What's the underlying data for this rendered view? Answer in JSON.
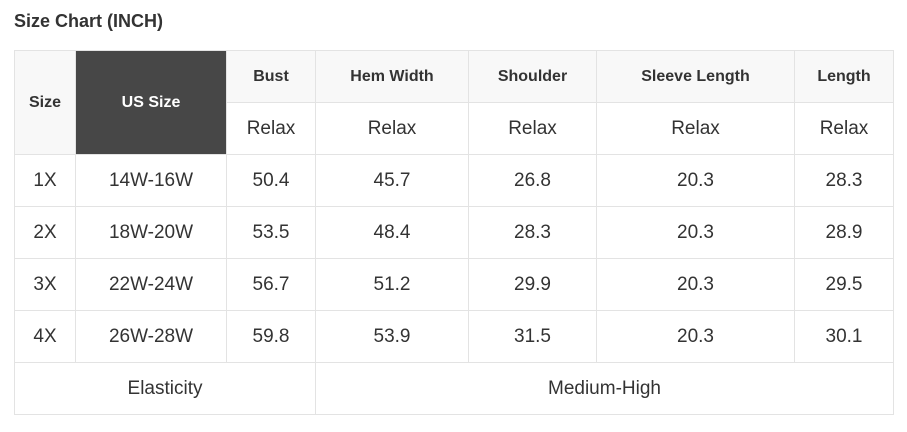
{
  "title": "Size Chart (INCH)",
  "headers": {
    "size": "Size",
    "us_size": "US Size",
    "cols": [
      "Bust",
      "Hem Width",
      "Shoulder",
      "Sleeve Length",
      "Length"
    ]
  },
  "fit": [
    "Relax",
    "Relax",
    "Relax",
    "Relax",
    "Relax"
  ],
  "rows": [
    [
      "1X",
      "14W-16W",
      "50.4",
      "45.7",
      "26.8",
      "20.3",
      "28.3"
    ],
    [
      "2X",
      "18W-20W",
      "53.5",
      "48.4",
      "28.3",
      "20.3",
      "28.9"
    ],
    [
      "3X",
      "22W-24W",
      "56.7",
      "51.2",
      "29.9",
      "20.3",
      "29.5"
    ],
    [
      "4X",
      "26W-28W",
      "59.8",
      "53.9",
      "31.5",
      "20.3",
      "30.1"
    ]
  ],
  "footer": {
    "label": "Elasticity",
    "value": "Medium-High"
  }
}
